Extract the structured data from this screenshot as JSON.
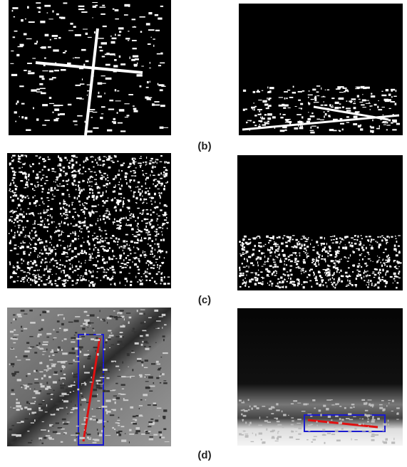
{
  "panels": [
    {
      "label": "(b)"
    },
    {
      "label": "(c)"
    },
    {
      "label": "(d)"
    }
  ]
}
